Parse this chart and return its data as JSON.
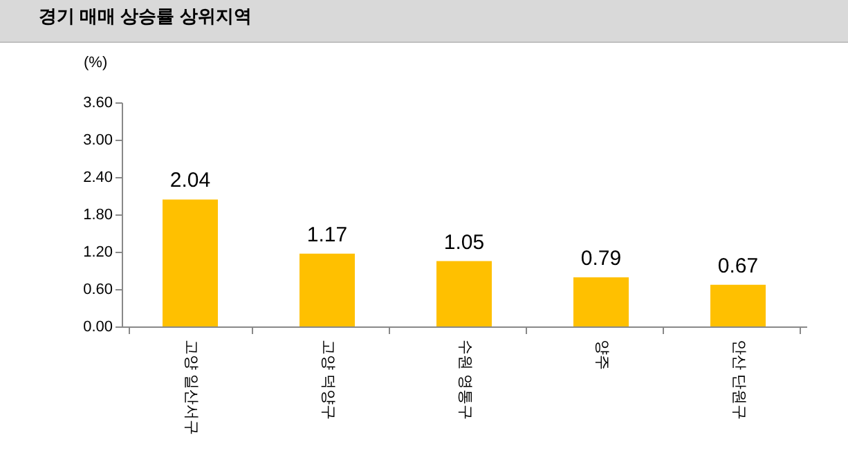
{
  "chart_data": {
    "type": "bar",
    "title": "경기 매매 상승률 상위지역",
    "ylabel": "(%)",
    "categories": [
      "고양 일산서구",
      "고양 덕양구",
      "수원 영통구",
      "양주",
      "안산 단원구"
    ],
    "values": [
      2.04,
      1.17,
      1.05,
      0.79,
      0.67
    ],
    "color": "#ffc000",
    "ylim": [
      0,
      3.6
    ],
    "yticks": [
      {
        "value": 0,
        "label": "0.00"
      },
      {
        "value": 0.6,
        "label": "0.60"
      },
      {
        "value": 1.2,
        "label": "1.20"
      },
      {
        "value": 1.8,
        "label": "1.80"
      },
      {
        "value": 2.4,
        "label": "2.40"
      },
      {
        "value": 3.0,
        "label": "3.00"
      },
      {
        "value": 3.6,
        "label": "3.60"
      }
    ],
    "data_labels": true,
    "grid": false
  }
}
